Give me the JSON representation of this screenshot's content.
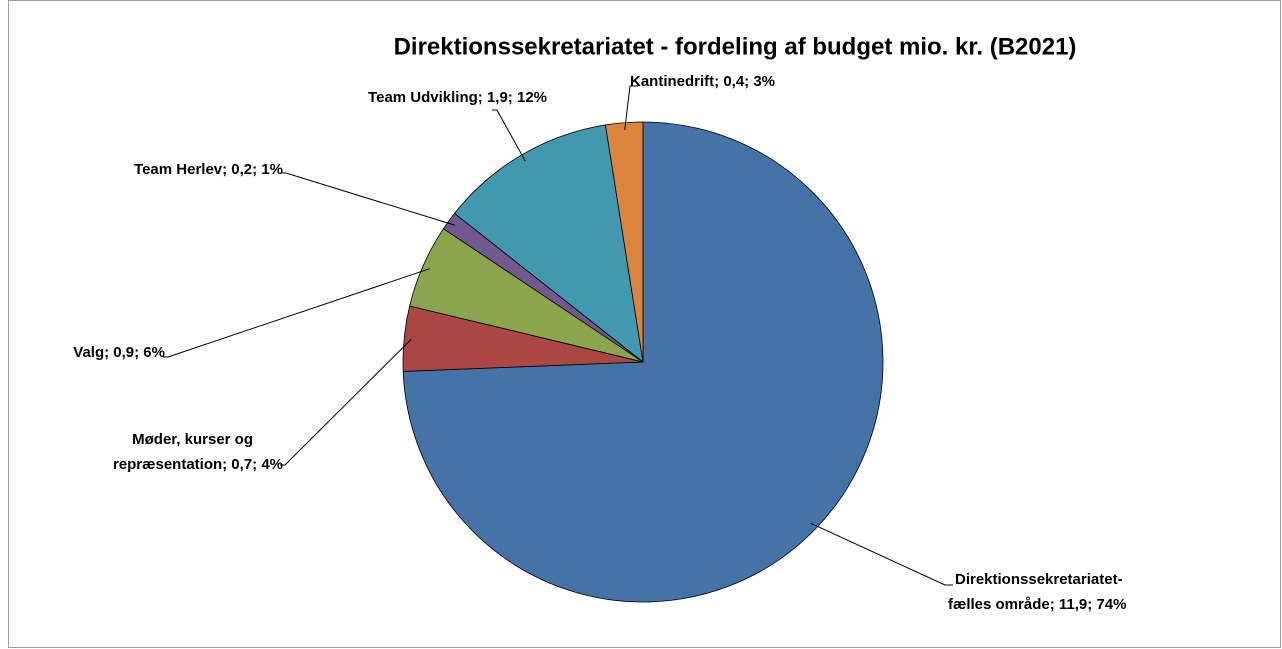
{
  "chart_data": {
    "type": "pie",
    "title": "Direktionssekretariatet - fordeling af budget mio. kr. (B2021)",
    "values": [
      11.9,
      0.7,
      0.9,
      0.2,
      1.9,
      0.4
    ],
    "value_labels": [
      [
        "Direktionssekretariatet-",
        "fælles område; 11,9; 74%"
      ],
      [
        "Møder, kurser og",
        "repræsentation; 0,7; 4%"
      ],
      [
        "Valg; 0,9; 6%"
      ],
      [
        "Team Herlev; 0,2; 1%"
      ],
      [
        "Team Udvikling; 1,9; 12%"
      ],
      [
        "Kantinedrift; 0,4; 3%"
      ]
    ],
    "colors": [
      "#4572a7",
      "#aa4643",
      "#89a54e",
      "#71588f",
      "#4198af",
      "#db843d"
    ]
  }
}
